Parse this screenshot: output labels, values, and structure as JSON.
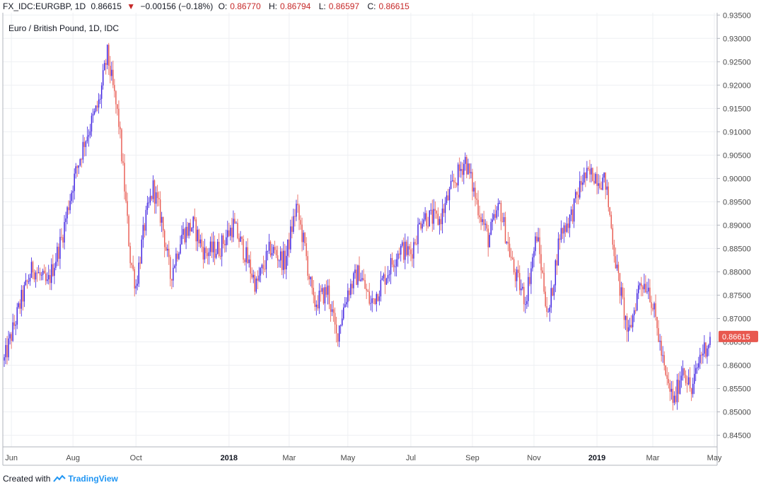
{
  "header": {
    "symbol": "FX_IDC:EURGBP, 1D",
    "last": "0.86615",
    "change_arrow": "▼",
    "change": "−0.00156 (−0.18%)",
    "open_label": "O:",
    "open": "0.86770",
    "high_label": "H:",
    "high": "0.86794",
    "low_label": "L:",
    "low": "0.86597",
    "close_label": "C:",
    "close": "0.86615"
  },
  "footer": {
    "created_with": "Created with",
    "brand": "TradingView",
    "brand_icon": "tradingview-logo-icon"
  },
  "colors": {
    "up": "#3b1de0",
    "down": "#e8584f",
    "grid": "#eef0f3",
    "price_tag": "#e8584f"
  },
  "chart_data": {
    "type": "candlestick",
    "title": "Euro / British Pound, 1D, IDC",
    "ylim": [
      0.8425,
      0.9355
    ],
    "y_ticks": [
      "0.93500",
      "0.93000",
      "0.92500",
      "0.92000",
      "0.91500",
      "0.91000",
      "0.90500",
      "0.90000",
      "0.89500",
      "0.89000",
      "0.88500",
      "0.88000",
      "0.87500",
      "0.87000",
      "0.86500",
      "0.86000",
      "0.85500",
      "0.85000",
      "0.84500"
    ],
    "x_ticks": [
      {
        "label": "Jun",
        "bold": false,
        "index": 5
      },
      {
        "label": "Aug",
        "bold": false,
        "index": 48
      },
      {
        "label": "Oct",
        "bold": false,
        "index": 92
      },
      {
        "label": "2018",
        "bold": true,
        "index": 157
      },
      {
        "label": "Mar",
        "bold": false,
        "index": 199
      },
      {
        "label": "May",
        "bold": false,
        "index": 240
      },
      {
        "label": "Jul",
        "bold": false,
        "index": 284
      },
      {
        "label": "Sep",
        "bold": false,
        "index": 327
      },
      {
        "label": "Nov",
        "bold": false,
        "index": 370
      },
      {
        "label": "2019",
        "bold": true,
        "index": 414
      },
      {
        "label": "Mar",
        "bold": false,
        "index": 453
      },
      {
        "label": "May",
        "bold": false,
        "index": 496
      }
    ],
    "n_bars": 494,
    "last_price": "0.86615",
    "anchors": [
      [
        0,
        0.861
      ],
      [
        12,
        0.874
      ],
      [
        20,
        0.881
      ],
      [
        30,
        0.877
      ],
      [
        40,
        0.887
      ],
      [
        48,
        0.899
      ],
      [
        56,
        0.908
      ],
      [
        66,
        0.916
      ],
      [
        72,
        0.9265
      ],
      [
        80,
        0.912
      ],
      [
        84,
        0.898
      ],
      [
        88,
        0.883
      ],
      [
        92,
        0.877
      ],
      [
        98,
        0.89
      ],
      [
        104,
        0.898
      ],
      [
        110,
        0.891
      ],
      [
        116,
        0.879
      ],
      [
        124,
        0.888
      ],
      [
        132,
        0.89
      ],
      [
        140,
        0.884
      ],
      [
        150,
        0.885
      ],
      [
        160,
        0.89
      ],
      [
        168,
        0.884
      ],
      [
        176,
        0.877
      ],
      [
        186,
        0.885
      ],
      [
        196,
        0.882
      ],
      [
        204,
        0.894
      ],
      [
        210,
        0.885
      ],
      [
        216,
        0.873
      ],
      [
        226,
        0.876
      ],
      [
        232,
        0.866
      ],
      [
        240,
        0.876
      ],
      [
        248,
        0.88
      ],
      [
        256,
        0.873
      ],
      [
        266,
        0.879
      ],
      [
        276,
        0.885
      ],
      [
        284,
        0.884
      ],
      [
        292,
        0.892
      ],
      [
        304,
        0.891
      ],
      [
        314,
        0.899
      ],
      [
        322,
        0.904
      ],
      [
        330,
        0.895
      ],
      [
        338,
        0.887
      ],
      [
        346,
        0.894
      ],
      [
        356,
        0.88
      ],
      [
        364,
        0.874
      ],
      [
        372,
        0.888
      ],
      [
        380,
        0.87
      ],
      [
        388,
        0.888
      ],
      [
        396,
        0.892
      ],
      [
        404,
        0.9
      ],
      [
        412,
        0.901
      ],
      [
        420,
        0.899
      ],
      [
        428,
        0.88
      ],
      [
        436,
        0.866
      ],
      [
        444,
        0.878
      ],
      [
        450,
        0.877
      ],
      [
        456,
        0.868
      ],
      [
        462,
        0.857
      ],
      [
        468,
        0.852
      ],
      [
        474,
        0.86
      ],
      [
        480,
        0.854
      ],
      [
        486,
        0.862
      ],
      [
        494,
        0.8661
      ]
    ]
  }
}
